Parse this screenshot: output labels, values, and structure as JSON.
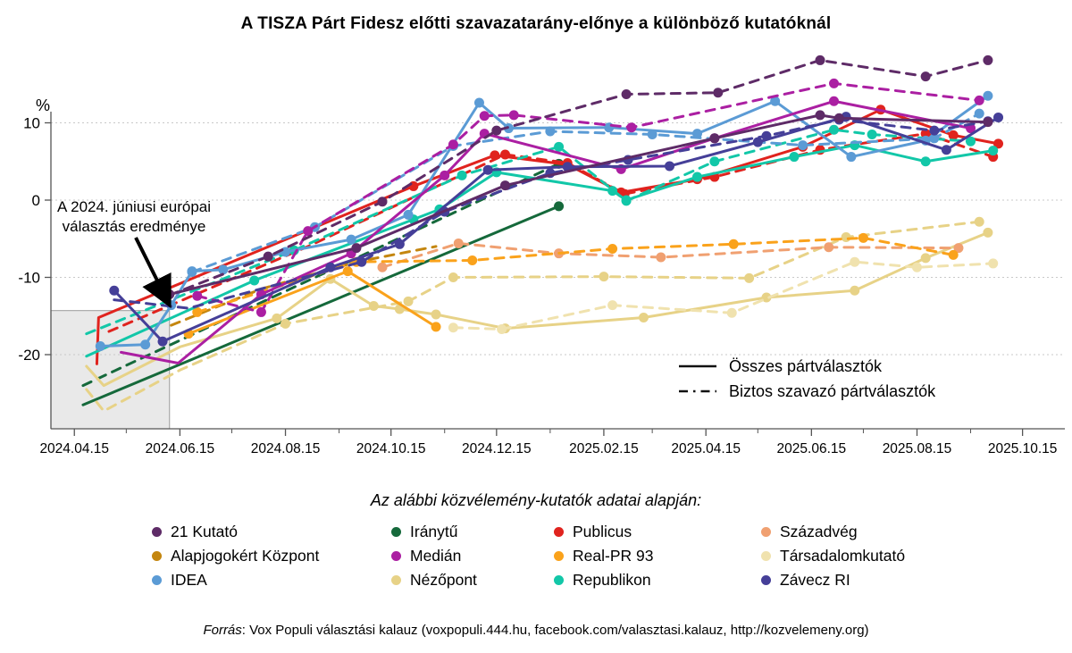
{
  "title": "A TISZA Párt Fidesz előtti szavazatarány-előnye a különböző kutatóknál",
  "y_axis": {
    "unit_label": "%",
    "ticks": [
      10,
      0,
      -10,
      -20
    ]
  },
  "x_axis": {
    "major_ticks": [
      {
        "date": "2024-04-15",
        "label": "2024.04.15"
      },
      {
        "date": "2024-06-15",
        "label": "2024.06.15"
      },
      {
        "date": "2024-08-15",
        "label": "2024.08.15"
      },
      {
        "date": "2024-10-15",
        "label": "2024.10.15"
      },
      {
        "date": "2024-12-15",
        "label": "2024.12.15"
      },
      {
        "date": "2025-02-15",
        "label": "2025.02.15"
      },
      {
        "date": "2025-04-15",
        "label": "2025.04.15"
      },
      {
        "date": "2025-06-15",
        "label": "2025.06.15"
      },
      {
        "date": "2025-08-15",
        "label": "2025.08.15"
      },
      {
        "date": "2025-10-15",
        "label": "2025.10.15"
      }
    ],
    "minor_tick_dates": [
      "2024-05-15",
      "2024-07-15",
      "2024-09-15",
      "2024-11-15",
      "2025-01-15",
      "2025-03-15",
      "2025-05-15",
      "2025-07-15",
      "2025-09-15"
    ]
  },
  "annotation": {
    "line1": "A 2024. júniusi európai",
    "line2": "választás eredménye"
  },
  "line_legend": {
    "solid_label": "Összes pártválasztók",
    "dashed_label": "Biztos szavazó pártválasztók"
  },
  "pollster_legend": {
    "title": "Az alábbi közvélemény-kutatók adatai alapján:",
    "items": [
      {
        "name": "21 Kutató",
        "color": "#5e2b67"
      },
      {
        "name": "Alapjogokért Központ",
        "color": "#c4860f"
      },
      {
        "name": "IDEA",
        "color": "#5b9bd5"
      },
      {
        "name": "Iránytű",
        "color": "#15693b"
      },
      {
        "name": "Medián",
        "color": "#ab1fa2"
      },
      {
        "name": "Nézőpont",
        "color": "#e7d287"
      },
      {
        "name": "Publicus",
        "color": "#e0231e"
      },
      {
        "name": "Real-PR 93",
        "color": "#faa21b"
      },
      {
        "name": "Republikon",
        "color": "#12c7a8"
      },
      {
        "name": "Századvég",
        "color": "#f0a071"
      },
      {
        "name": "Társadalomkutató",
        "color": "#f0e2ae"
      },
      {
        "name": "Závecz RI",
        "color": "#453f98"
      }
    ]
  },
  "footer": {
    "source_label": "Forrás",
    "rest": ": Vox Populi választási kalauz (voxpopuli.444.hu, facebook.com/valasztasi.kalauz, http://kozvelemeny.org)"
  },
  "chart_data": {
    "type": "line",
    "title": "A TISZA Párt Fidesz előtti szavazatarány-előnye a különböző kutatóknál",
    "ylabel": "%",
    "ylim": [
      -29,
      19
    ],
    "gridline_values": [
      10,
      0,
      -10,
      -20
    ],
    "x_domain": [
      "2024-04-03",
      "2025-10-25"
    ],
    "highlight_box": {
      "date_end": "2024-06-09",
      "y_top": -14.3,
      "note": "EP election 2024.06.09 result region"
    },
    "legend_note": "solid = Összes pártválasztók, dashed = Biztos szavazó pártválasztók",
    "series": [
      {
        "pollster": "Iránytű",
        "group": "Összes pártválasztók",
        "color": "#15693b",
        "style": "solid",
        "marker": "end",
        "points": [
          [
            "2024-04-20",
            -26.5
          ],
          [
            "2025-01-20",
            -0.8
          ]
        ]
      },
      {
        "pollster": "Iránytű",
        "group": "Biztos szavazó pártválasztók",
        "color": "#15693b",
        "style": "dashed",
        "marker": "end",
        "points": [
          [
            "2024-04-20",
            -24.0
          ],
          [
            "2025-01-20",
            4.7
          ]
        ]
      },
      {
        "pollster": "Nézőpont",
        "group": "Összes pártválasztók",
        "color": "#e7d287",
        "style": "solid",
        "marker": 3,
        "points": [
          [
            "2024-04-22",
            -21.5
          ],
          [
            "2024-05-02",
            -24.0
          ],
          [
            "2024-06-15",
            -19.0
          ],
          [
            "2024-08-10",
            -15.3
          ],
          [
            "2024-09-10",
            -10.2
          ],
          [
            "2024-10-05",
            -13.7
          ],
          [
            "2024-10-20",
            -14.1
          ],
          [
            "2024-11-10",
            -14.8
          ],
          [
            "2024-12-20",
            -16.6
          ],
          [
            "2025-03-10",
            -15.2
          ],
          [
            "2025-05-20",
            -12.6
          ],
          [
            "2025-07-10",
            -11.7
          ],
          [
            "2025-08-20",
            -7.5
          ],
          [
            "2025-09-25",
            -4.2
          ]
        ]
      },
      {
        "pollster": "Nézőpont",
        "group": "Biztos szavazó pártválasztók",
        "color": "#e7d287",
        "style": "dashed",
        "marker": 3,
        "points": [
          [
            "2024-04-22",
            -24.5
          ],
          [
            "2024-05-02",
            -27.3
          ],
          [
            "2024-06-15",
            -22.0
          ],
          [
            "2024-08-15",
            -16.0
          ],
          [
            "2024-10-25",
            -13.1
          ],
          [
            "2024-11-20",
            -10.0
          ],
          [
            "2025-02-15",
            -9.9
          ],
          [
            "2025-05-10",
            -10.1
          ],
          [
            "2025-07-05",
            -4.8
          ],
          [
            "2025-09-20",
            -2.8
          ]
        ]
      },
      {
        "pollster": "Társadalomkutató",
        "group": "Biztos szavazó pártválasztók",
        "color": "#f0e2ae",
        "style": "dashed",
        "marker": "all",
        "points": [
          [
            "2024-11-20",
            -16.5
          ],
          [
            "2024-12-18",
            -16.7
          ],
          [
            "2025-02-20",
            -13.6
          ],
          [
            "2025-04-30",
            -14.6
          ],
          [
            "2025-07-10",
            -8.0
          ],
          [
            "2025-08-15",
            -8.7
          ],
          [
            "2025-09-28",
            -8.2
          ]
        ]
      },
      {
        "pollster": "Századvég",
        "group": "Biztos szavazó pártválasztók",
        "color": "#f0a071",
        "style": "dashed",
        "marker": "all",
        "points": [
          [
            "2024-10-10",
            -8.7
          ],
          [
            "2024-11-23",
            -5.6
          ],
          [
            "2025-01-20",
            -6.9
          ],
          [
            "2025-03-20",
            -7.4
          ],
          [
            "2025-06-25",
            -6.1
          ],
          [
            "2025-09-08",
            -6.2
          ]
        ]
      },
      {
        "pollster": "Alapjogokért Központ",
        "group": "Biztos szavazó pártválasztók",
        "color": "#c4860f",
        "style": "dashed",
        "marker": "none",
        "points": [
          [
            "2024-06-10",
            -16.2
          ],
          [
            "2024-08-01",
            -11.5
          ],
          [
            "2024-09-25",
            -8.0
          ],
          [
            "2024-11-10",
            -6.0
          ]
        ]
      },
      {
        "pollster": "Real-PR 93",
        "group": "Összes pártválasztók",
        "color": "#faa21b",
        "style": "solid",
        "marker": "all",
        "points": [
          [
            "2024-06-20",
            -17.3
          ],
          [
            "2024-09-20",
            -9.2
          ],
          [
            "2024-11-10",
            -16.4
          ]
        ]
      },
      {
        "pollster": "Real-PR 93",
        "group": "Biztos szavazó pártválasztók",
        "color": "#faa21b",
        "style": "dashed",
        "marker": "all",
        "points": [
          [
            "2024-06-25",
            -14.5
          ],
          [
            "2024-09-25",
            -8.0
          ],
          [
            "2024-12-01",
            -7.8
          ],
          [
            "2025-02-20",
            -6.3
          ],
          [
            "2025-05-01",
            -5.7
          ],
          [
            "2025-07-15",
            -4.9
          ],
          [
            "2025-09-05",
            -7.1
          ]
        ]
      },
      {
        "pollster": "Publicus",
        "group": "Összes pártválasztók",
        "color": "#e0231e",
        "style": "solid",
        "marker": 2,
        "points": [
          [
            "2024-04-28",
            -21.2
          ],
          [
            "2024-04-29",
            -15.2
          ],
          [
            "2024-10-28",
            1.8
          ],
          [
            "2024-12-14",
            5.8
          ],
          [
            "2025-01-25",
            4.6
          ],
          [
            "2025-02-25",
            1.0
          ],
          [
            "2025-04-10",
            2.7
          ],
          [
            "2025-06-10",
            6.9
          ],
          [
            "2025-07-25",
            11.7
          ],
          [
            "2025-09-05",
            8.4
          ],
          [
            "2025-10-01",
            7.3
          ]
        ]
      },
      {
        "pollster": "Publicus",
        "group": "Biztos szavazó pártválasztók",
        "color": "#e0231e",
        "style": "dashed",
        "marker": 2,
        "points": [
          [
            "2024-05-05",
            -17.0
          ],
          [
            "2024-08-28",
            -6.0
          ],
          [
            "2024-12-20",
            5.9
          ],
          [
            "2025-01-25",
            4.8
          ],
          [
            "2025-02-27",
            0.8
          ],
          [
            "2025-04-20",
            3.0
          ],
          [
            "2025-06-20",
            6.5
          ],
          [
            "2025-08-20",
            8.6
          ],
          [
            "2025-09-28",
            5.6
          ]
        ]
      },
      {
        "pollster": "Republikon",
        "group": "Összes pártválasztók",
        "color": "#12c7a8",
        "style": "solid",
        "marker": 1,
        "points": [
          [
            "2024-04-22",
            -20.2
          ],
          [
            "2024-07-28",
            -10.4
          ],
          [
            "2024-10-28",
            -2.5
          ],
          [
            "2024-11-12",
            -1.2
          ],
          [
            "2024-12-15",
            3.6
          ],
          [
            "2025-02-20",
            1.2
          ],
          [
            "2025-02-28",
            0.0
          ],
          [
            "2025-04-10",
            3.0
          ],
          [
            "2025-06-05",
            5.6
          ],
          [
            "2025-07-10",
            7.1
          ],
          [
            "2025-08-20",
            5.0
          ],
          [
            "2025-09-28",
            6.4
          ]
        ]
      },
      {
        "pollster": "Republikon",
        "group": "Biztos szavazó pártválasztók",
        "color": "#12c7a8",
        "style": "dashed",
        "marker": 1,
        "points": [
          [
            "2024-04-22",
            -17.3
          ],
          [
            "2024-08-20",
            -6.5
          ],
          [
            "2024-11-25",
            3.2
          ],
          [
            "2025-01-20",
            6.9
          ],
          [
            "2025-02-28",
            -0.1
          ],
          [
            "2025-04-20",
            5.0
          ],
          [
            "2025-06-28",
            9.1
          ],
          [
            "2025-07-20",
            8.5
          ],
          [
            "2025-09-15",
            7.6
          ]
        ]
      },
      {
        "pollster": "IDEA",
        "group": "Összes pártválasztók",
        "color": "#5b9bd5",
        "style": "solid",
        "marker": "all",
        "points": [
          [
            "2024-04-30",
            -18.9
          ],
          [
            "2024-05-26",
            -18.7
          ],
          [
            "2024-06-10",
            -13.6
          ],
          [
            "2024-06-22",
            -9.2
          ],
          [
            "2024-07-10",
            -9.0
          ],
          [
            "2024-08-15",
            -6.7
          ],
          [
            "2024-09-22",
            -5.1
          ],
          [
            "2024-10-25",
            -1.9
          ],
          [
            "2024-12-05",
            12.6
          ],
          [
            "2024-12-22",
            9.3
          ],
          [
            "2025-02-18",
            9.4
          ],
          [
            "2025-04-10",
            8.6
          ],
          [
            "2025-05-25",
            12.8
          ],
          [
            "2025-07-08",
            5.6
          ],
          [
            "2025-08-20",
            7.7
          ],
          [
            "2025-09-25",
            13.5
          ]
        ]
      },
      {
        "pollster": "IDEA",
        "group": "Biztos szavazó pártválasztók",
        "color": "#5b9bd5",
        "style": "dashed",
        "marker": "all",
        "points": [
          [
            "2024-06-22",
            -9.3
          ],
          [
            "2024-09-01",
            -3.5
          ],
          [
            "2024-11-20",
            7.0
          ],
          [
            "2025-01-15",
            8.9
          ],
          [
            "2025-03-15",
            8.5
          ],
          [
            "2025-06-10",
            7.1
          ],
          [
            "2025-08-25",
            8.0
          ],
          [
            "2025-09-20",
            11.2
          ]
        ]
      },
      {
        "pollster": "Medián",
        "group": "Összes pártválasztók",
        "color": "#ab1fa2",
        "style": "solid",
        "marker": 2,
        "points": [
          [
            "2024-05-12",
            -19.7
          ],
          [
            "2024-06-14",
            -21.1
          ],
          [
            "2024-08-01",
            -12.2
          ],
          [
            "2024-09-22",
            -6.9
          ],
          [
            "2024-11-15",
            3.2
          ],
          [
            "2024-12-08",
            8.6
          ],
          [
            "2025-02-25",
            4.0
          ],
          [
            "2025-04-20",
            8.0
          ],
          [
            "2025-06-28",
            12.8
          ],
          [
            "2025-09-15",
            9.3
          ]
        ]
      },
      {
        "pollster": "Medián",
        "group": "Biztos szavazó pártválasztók",
        "color": "#ab1fa2",
        "style": "dashed",
        "marker": "all",
        "points": [
          [
            "2024-06-25",
            -12.4
          ],
          [
            "2024-08-01",
            -14.5
          ],
          [
            "2024-08-28",
            -4.0
          ],
          [
            "2024-11-20",
            7.2
          ],
          [
            "2024-12-08",
            10.9
          ],
          [
            "2024-12-25",
            11.0
          ],
          [
            "2025-03-03",
            9.4
          ],
          [
            "2025-06-28",
            15.1
          ],
          [
            "2025-09-20",
            12.9
          ]
        ]
      },
      {
        "pollster": "Závecz RI",
        "group": "Összes pártválasztók",
        "color": "#453f98",
        "style": "solid",
        "marker": "all",
        "points": [
          [
            "2024-05-08",
            -11.7
          ],
          [
            "2024-06-05",
            -18.3
          ],
          [
            "2024-09-10",
            -8.7
          ],
          [
            "2024-10-20",
            -5.7
          ],
          [
            "2024-12-10",
            3.9
          ],
          [
            "2025-01-25",
            4.3
          ],
          [
            "2025-03-25",
            4.4
          ],
          [
            "2025-05-15",
            7.5
          ],
          [
            "2025-07-05",
            10.8
          ],
          [
            "2025-09-01",
            6.5
          ],
          [
            "2025-10-01",
            10.7
          ]
        ]
      },
      {
        "pollster": "Závecz RI",
        "group": "Biztos szavazó pártválasztók",
        "color": "#453f98",
        "style": "dashed",
        "marker": 2,
        "points": [
          [
            "2024-05-08",
            -12.9
          ],
          [
            "2024-06-20",
            -14.0
          ],
          [
            "2024-09-28",
            -8.0
          ],
          [
            "2024-11-15",
            -1.5
          ],
          [
            "2025-01-15",
            3.5
          ],
          [
            "2025-03-01",
            5.2
          ],
          [
            "2025-05-20",
            8.3
          ],
          [
            "2025-07-01",
            10.4
          ],
          [
            "2025-08-25",
            9.0
          ],
          [
            "2025-09-25",
            10.2
          ]
        ]
      },
      {
        "pollster": "21 Kutató",
        "group": "Összes pártválasztók",
        "color": "#5e2b67",
        "style": "solid",
        "marker": "all",
        "points": [
          [
            "2024-06-09",
            -12.2
          ],
          [
            "2024-09-25",
            -6.2
          ],
          [
            "2024-12-20",
            1.9
          ],
          [
            "2025-04-20",
            8.0
          ],
          [
            "2025-06-20",
            11.0
          ],
          [
            "2025-07-01",
            10.6
          ],
          [
            "2025-09-25",
            10.1
          ]
        ]
      },
      {
        "pollster": "21 Kutató",
        "group": "Biztos szavazó pártválasztók",
        "color": "#5e2b67",
        "style": "dashed",
        "marker": 1,
        "points": [
          [
            "2024-06-09",
            -12.3
          ],
          [
            "2024-08-05",
            -7.3
          ],
          [
            "2024-10-10",
            -0.2
          ],
          [
            "2024-12-15",
            9.0
          ],
          [
            "2025-02-28",
            13.7
          ],
          [
            "2025-04-22",
            13.9
          ],
          [
            "2025-06-20",
            18.1
          ],
          [
            "2025-08-20",
            16.0
          ],
          [
            "2025-09-25",
            18.1
          ]
        ]
      }
    ]
  }
}
